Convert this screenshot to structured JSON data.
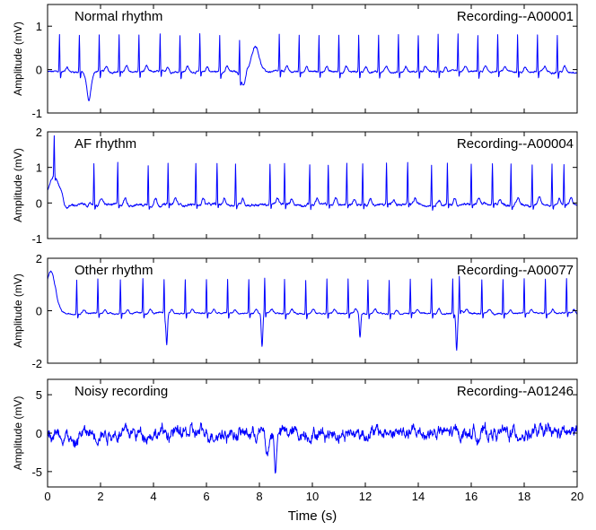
{
  "figure": {
    "x_label": "Time (s)",
    "line_color": "#0000ff"
  },
  "chart_data": [
    {
      "type": "line",
      "title": "Normal rhythm",
      "annotation": "Recording--A00001",
      "ylabel": "Amplitude (mV)",
      "xlim": [
        0,
        20
      ],
      "ylim": [
        -1,
        1.5
      ],
      "yticks": [
        -1,
        0,
        1
      ],
      "xticks": [
        0,
        2,
        4,
        6,
        8,
        10,
        12,
        14,
        16,
        18,
        20
      ],
      "show_xtick_labels": false,
      "grid": false,
      "waveform": {
        "baseline": -0.05,
        "r_peaks": [
          0.45,
          1.2,
          1.95,
          2.7,
          3.45,
          4.25,
          5.0,
          5.75,
          6.5,
          7.25,
          8.75,
          9.5,
          10.25,
          11.0,
          11.75,
          12.5,
          13.25,
          14.0,
          14.75,
          15.5,
          16.25,
          17.0,
          17.75,
          18.5,
          19.25
        ],
        "r_amplitude": 0.85,
        "s_depth": -0.15,
        "t_amplitude": 0.12,
        "noise": 0.03,
        "events": [
          {
            "t": 1.55,
            "amp": -0.7,
            "width": 0.12
          },
          {
            "t": 7.85,
            "amp": 0.6,
            "width": 0.2
          },
          {
            "t": 7.4,
            "amp": -0.3,
            "width": 0.15
          }
        ]
      }
    },
    {
      "type": "line",
      "title": "AF rhythm",
      "annotation": "Recording--A00004",
      "ylabel": "Amplitude (mV)",
      "xlim": [
        0,
        20
      ],
      "ylim": [
        -1,
        2
      ],
      "yticks": [
        -1,
        0,
        1,
        2
      ],
      "xticks": [
        0,
        2,
        4,
        6,
        8,
        10,
        12,
        14,
        16,
        18,
        20
      ],
      "show_xtick_labels": false,
      "grid": false,
      "waveform": {
        "baseline": -0.05,
        "r_peaks": [
          0.25,
          1.75,
          2.65,
          3.8,
          4.55,
          5.6,
          6.4,
          7.1,
          8.4,
          8.95,
          9.9,
          10.6,
          11.3,
          11.9,
          12.8,
          13.6,
          14.5,
          15.1,
          16.0,
          16.8,
          17.5,
          18.3,
          19.05,
          19.5
        ],
        "r_amplitude": 1.15,
        "s_depth": -0.12,
        "t_amplitude": 0.18,
        "noise": 0.05,
        "events": [
          {
            "t": 0.25,
            "amp": 0.8,
            "width": 0.3
          },
          {
            "t": 0.65,
            "amp": -0.15,
            "width": 0.2
          }
        ]
      }
    },
    {
      "type": "line",
      "title": "Other rhythm",
      "annotation": "Recording--A00077",
      "ylabel": "Amplitude (mV)",
      "xlim": [
        0,
        20
      ],
      "ylim": [
        -2,
        2
      ],
      "yticks": [
        -2,
        0,
        2
      ],
      "xticks": [
        0,
        2,
        4,
        6,
        8,
        10,
        12,
        14,
        16,
        18,
        20
      ],
      "show_xtick_labels": false,
      "grid": false,
      "waveform": {
        "baseline": -0.1,
        "r_peaks": [
          1.1,
          1.9,
          2.75,
          3.6,
          4.4,
          5.2,
          6.0,
          6.8,
          7.6,
          8.2,
          8.95,
          9.75,
          10.55,
          11.35,
          12.1,
          12.9,
          13.7,
          14.5,
          15.3,
          15.55,
          16.4,
          17.2,
          18.0,
          18.8,
          19.6
        ],
        "r_amplitude": 1.3,
        "s_depth": -0.2,
        "t_amplitude": 0.15,
        "noise": 0.04,
        "events": [
          {
            "t": 0.12,
            "amp": 1.6,
            "width": 0.25
          },
          {
            "t": 4.5,
            "amp": -1.2,
            "width": 0.04
          },
          {
            "t": 8.1,
            "amp": -1.3,
            "width": 0.04
          },
          {
            "t": 11.8,
            "amp": -0.9,
            "width": 0.04
          },
          {
            "t": 15.45,
            "amp": -1.4,
            "width": 0.04
          }
        ]
      }
    },
    {
      "type": "line",
      "title": "Noisy recording",
      "annotation": "Recording--A01246",
      "ylabel": "Amplitude (mV)",
      "xlim": [
        0,
        20
      ],
      "ylim": [
        -7,
        7
      ],
      "yticks": [
        -5,
        0,
        5
      ],
      "xticks": [
        0,
        2,
        4,
        6,
        8,
        10,
        12,
        14,
        16,
        18,
        20
      ],
      "xtick_labels": [
        "0",
        "2",
        "4",
        "6",
        "8",
        "10",
        "12",
        "14",
        "16",
        "18",
        "20"
      ],
      "show_xtick_labels": true,
      "grid": false,
      "waveform": {
        "baseline": 0,
        "r_peaks": [],
        "r_amplitude": 0,
        "s_depth": 0,
        "t_amplitude": 0,
        "noise": 1.1,
        "events": [
          {
            "t": 8.6,
            "amp": -5.5,
            "width": 0.05
          },
          {
            "t": 8.3,
            "amp": -3.0,
            "width": 0.08
          },
          {
            "t": 1.0,
            "amp": -1.8,
            "width": 0.15
          }
        ]
      }
    }
  ]
}
